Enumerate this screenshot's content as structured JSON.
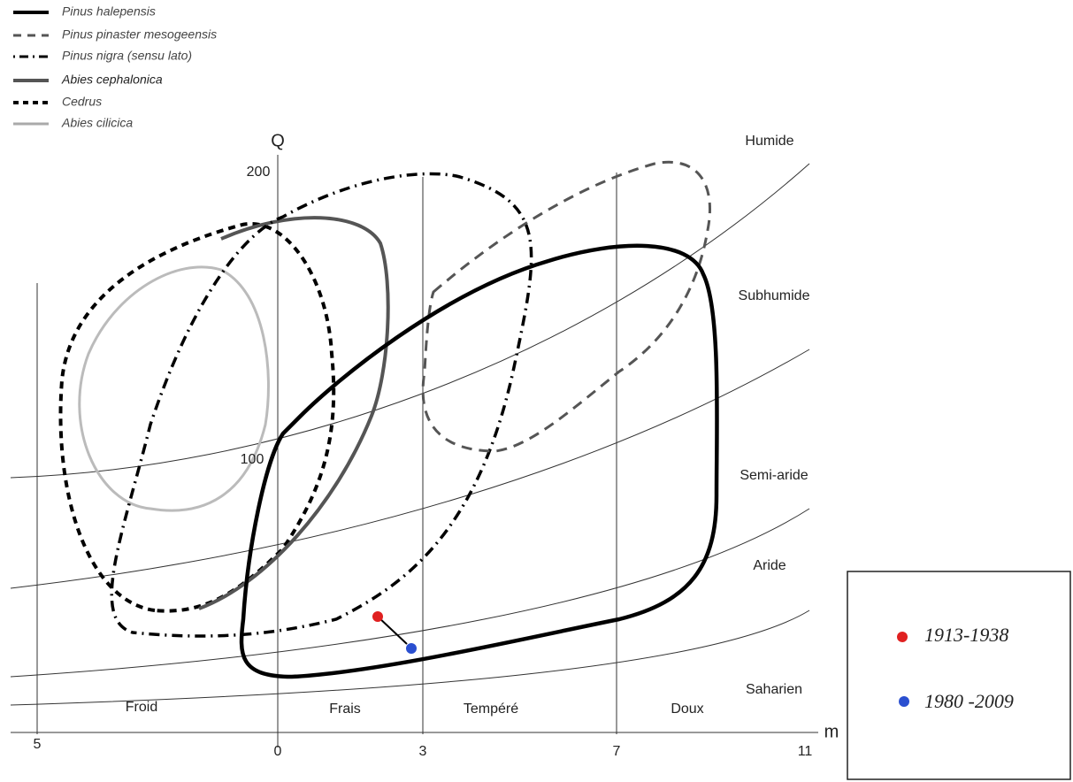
{
  "legend": [
    "Pinus halepensis",
    "Pinus pinaster mesogeensis",
    "Pinus nigra (sensu lato)",
    "Abies cephalonica",
    "Cedrus",
    "Abies cilicica"
  ],
  "axes": {
    "y_label": "Q",
    "x_label": "m",
    "y_ticks": [
      "200",
      "100"
    ],
    "x_ticks": [
      "5",
      "0",
      "3",
      "7",
      "11"
    ]
  },
  "zones": [
    "Humide",
    "Subhumide",
    "Semi-aride",
    "Aride",
    "Saharien"
  ],
  "temperature_zones": [
    "Froid",
    "Frais",
    "Tempéré",
    "Doux"
  ],
  "periods": [
    "1913-1938",
    "1980 -2009"
  ]
}
